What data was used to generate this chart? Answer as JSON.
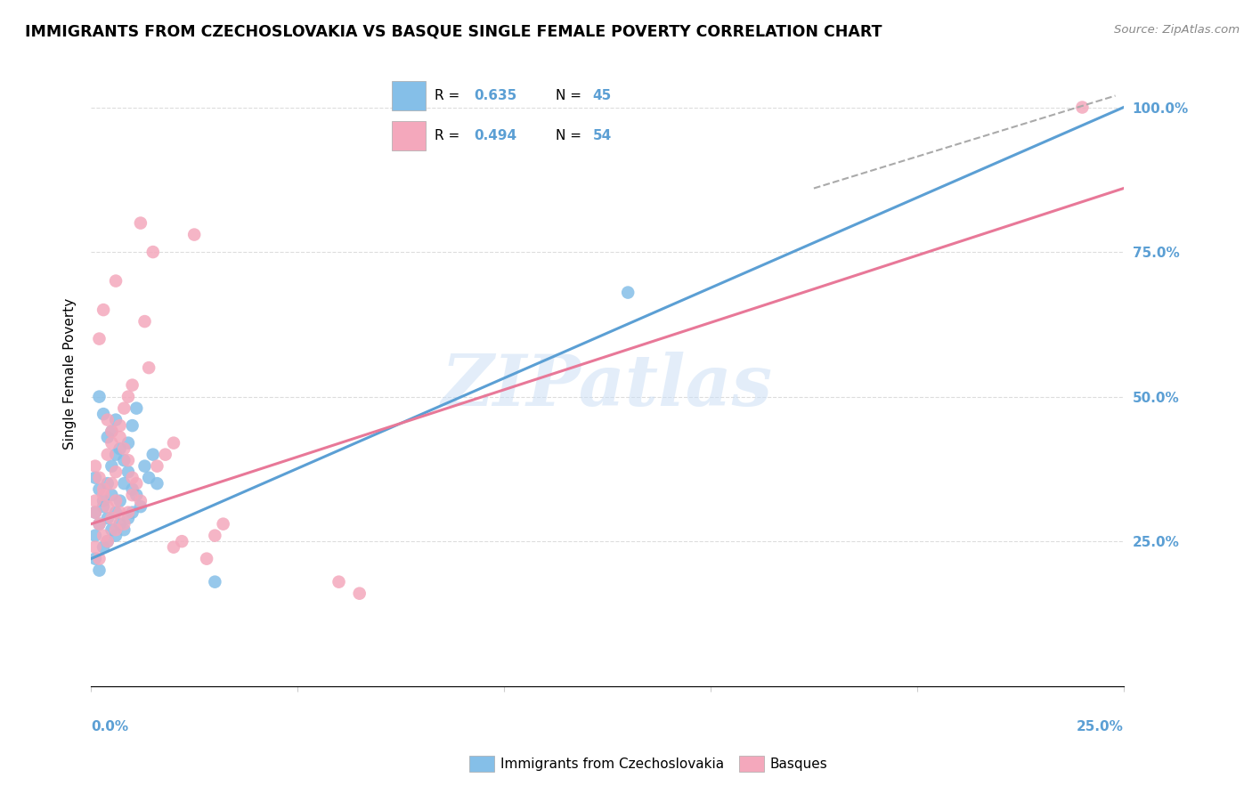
{
  "title": "IMMIGRANTS FROM CZECHOSLOVAKIA VS BASQUE SINGLE FEMALE POVERTY CORRELATION CHART",
  "source": "Source: ZipAtlas.com",
  "ylabel": "Single Female Poverty",
  "xlim": [
    0.0,
    0.25
  ],
  "ylim": [
    0.0,
    1.08
  ],
  "R_blue": 0.635,
  "N_blue": 45,
  "R_pink": 0.494,
  "N_pink": 54,
  "blue_color": "#85bfe8",
  "pink_color": "#f4a8bc",
  "blue_line_color": "#5b9fd4",
  "pink_line_color": "#e87898",
  "right_axis_color": "#5b9fd4",
  "legend_R_blue": "0.635",
  "legend_N_blue": "45",
  "legend_R_pink": "0.494",
  "legend_N_pink": "54",
  "watermark": "ZIPatlas",
  "blue_line_x0": 0.0,
  "blue_line_y0": 0.22,
  "blue_line_x1": 0.25,
  "blue_line_y1": 1.0,
  "pink_line_x0": 0.0,
  "pink_line_y0": 0.28,
  "pink_line_x1": 0.25,
  "pink_line_y1": 0.86,
  "dash_line_x0": 0.175,
  "dash_line_y0": 0.86,
  "dash_line_x1": 0.248,
  "dash_line_y1": 1.02,
  "blue_x": [
    0.001,
    0.002,
    0.001,
    0.003,
    0.002,
    0.001,
    0.004,
    0.003,
    0.002,
    0.001,
    0.005,
    0.004,
    0.003,
    0.006,
    0.005,
    0.004,
    0.007,
    0.006,
    0.005,
    0.008,
    0.007,
    0.006,
    0.009,
    0.008,
    0.01,
    0.009,
    0.011,
    0.01,
    0.012,
    0.011,
    0.013,
    0.014,
    0.015,
    0.016,
    0.002,
    0.003,
    0.004,
    0.005,
    0.006,
    0.007,
    0.008,
    0.009,
    0.01,
    0.13,
    0.03
  ],
  "blue_y": [
    0.22,
    0.2,
    0.26,
    0.24,
    0.28,
    0.3,
    0.25,
    0.32,
    0.34,
    0.36,
    0.27,
    0.29,
    0.31,
    0.26,
    0.33,
    0.35,
    0.28,
    0.3,
    0.38,
    0.27,
    0.32,
    0.4,
    0.29,
    0.35,
    0.3,
    0.42,
    0.33,
    0.45,
    0.31,
    0.48,
    0.38,
    0.36,
    0.4,
    0.35,
    0.5,
    0.47,
    0.43,
    0.44,
    0.46,
    0.41,
    0.39,
    0.37,
    0.34,
    0.68,
    0.18
  ],
  "pink_x": [
    0.001,
    0.002,
    0.001,
    0.003,
    0.002,
    0.001,
    0.004,
    0.003,
    0.002,
    0.001,
    0.005,
    0.004,
    0.003,
    0.006,
    0.005,
    0.004,
    0.007,
    0.006,
    0.005,
    0.008,
    0.007,
    0.006,
    0.009,
    0.008,
    0.01,
    0.009,
    0.011,
    0.01,
    0.012,
    0.014,
    0.016,
    0.018,
    0.02,
    0.002,
    0.003,
    0.004,
    0.005,
    0.006,
    0.007,
    0.008,
    0.009,
    0.01,
    0.06,
    0.065,
    0.03,
    0.032,
    0.028,
    0.025,
    0.022,
    0.02,
    0.015,
    0.013,
    0.24,
    0.012
  ],
  "pink_y": [
    0.24,
    0.22,
    0.3,
    0.26,
    0.28,
    0.32,
    0.25,
    0.34,
    0.36,
    0.38,
    0.29,
    0.31,
    0.33,
    0.27,
    0.35,
    0.4,
    0.3,
    0.32,
    0.42,
    0.28,
    0.45,
    0.37,
    0.3,
    0.48,
    0.33,
    0.5,
    0.35,
    0.52,
    0.32,
    0.55,
    0.38,
    0.4,
    0.42,
    0.6,
    0.65,
    0.46,
    0.44,
    0.7,
    0.43,
    0.41,
    0.39,
    0.36,
    0.18,
    0.16,
    0.26,
    0.28,
    0.22,
    0.78,
    0.25,
    0.24,
    0.75,
    0.63,
    1.0,
    0.8
  ]
}
